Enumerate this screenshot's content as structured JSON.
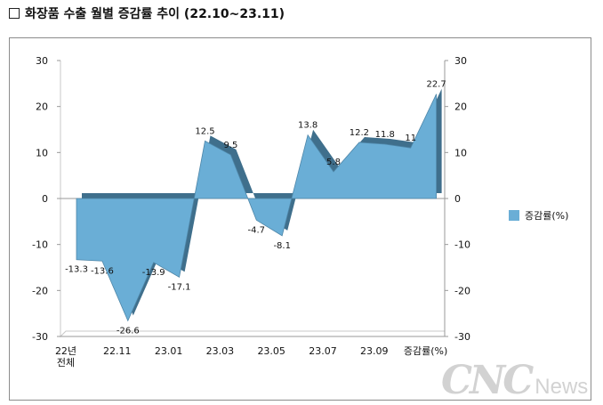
{
  "heading": {
    "text": "화장품 수출 월별 증감률 추이 (22.10~23.11)"
  },
  "watermark": {
    "main": "CNC",
    "sub": "News"
  },
  "chart_data": {
    "type": "area",
    "title": "화장품 수출 월별 증감률 추이 (22.10~23.11)",
    "series": [
      {
        "name": "증감률(%)",
        "color": "#6aaed6",
        "values": [
          -13.3,
          -13.6,
          -26.6,
          -13.9,
          -17.1,
          12.5,
          9.5,
          -4.7,
          -8.1,
          13.8,
          5.8,
          12.2,
          11.8,
          11,
          22.7
        ]
      }
    ],
    "category_labels": [
      "22년\n전체",
      "22.11",
      "23.01",
      "23.03",
      "23.05",
      "23.07",
      "23.09",
      "증감률(%)"
    ],
    "ylim": [
      -30,
      30
    ],
    "yticks": [
      -30,
      -20,
      -10,
      0,
      10,
      20,
      30
    ],
    "secondary_axis": true,
    "legend": "right",
    "grid": false
  }
}
